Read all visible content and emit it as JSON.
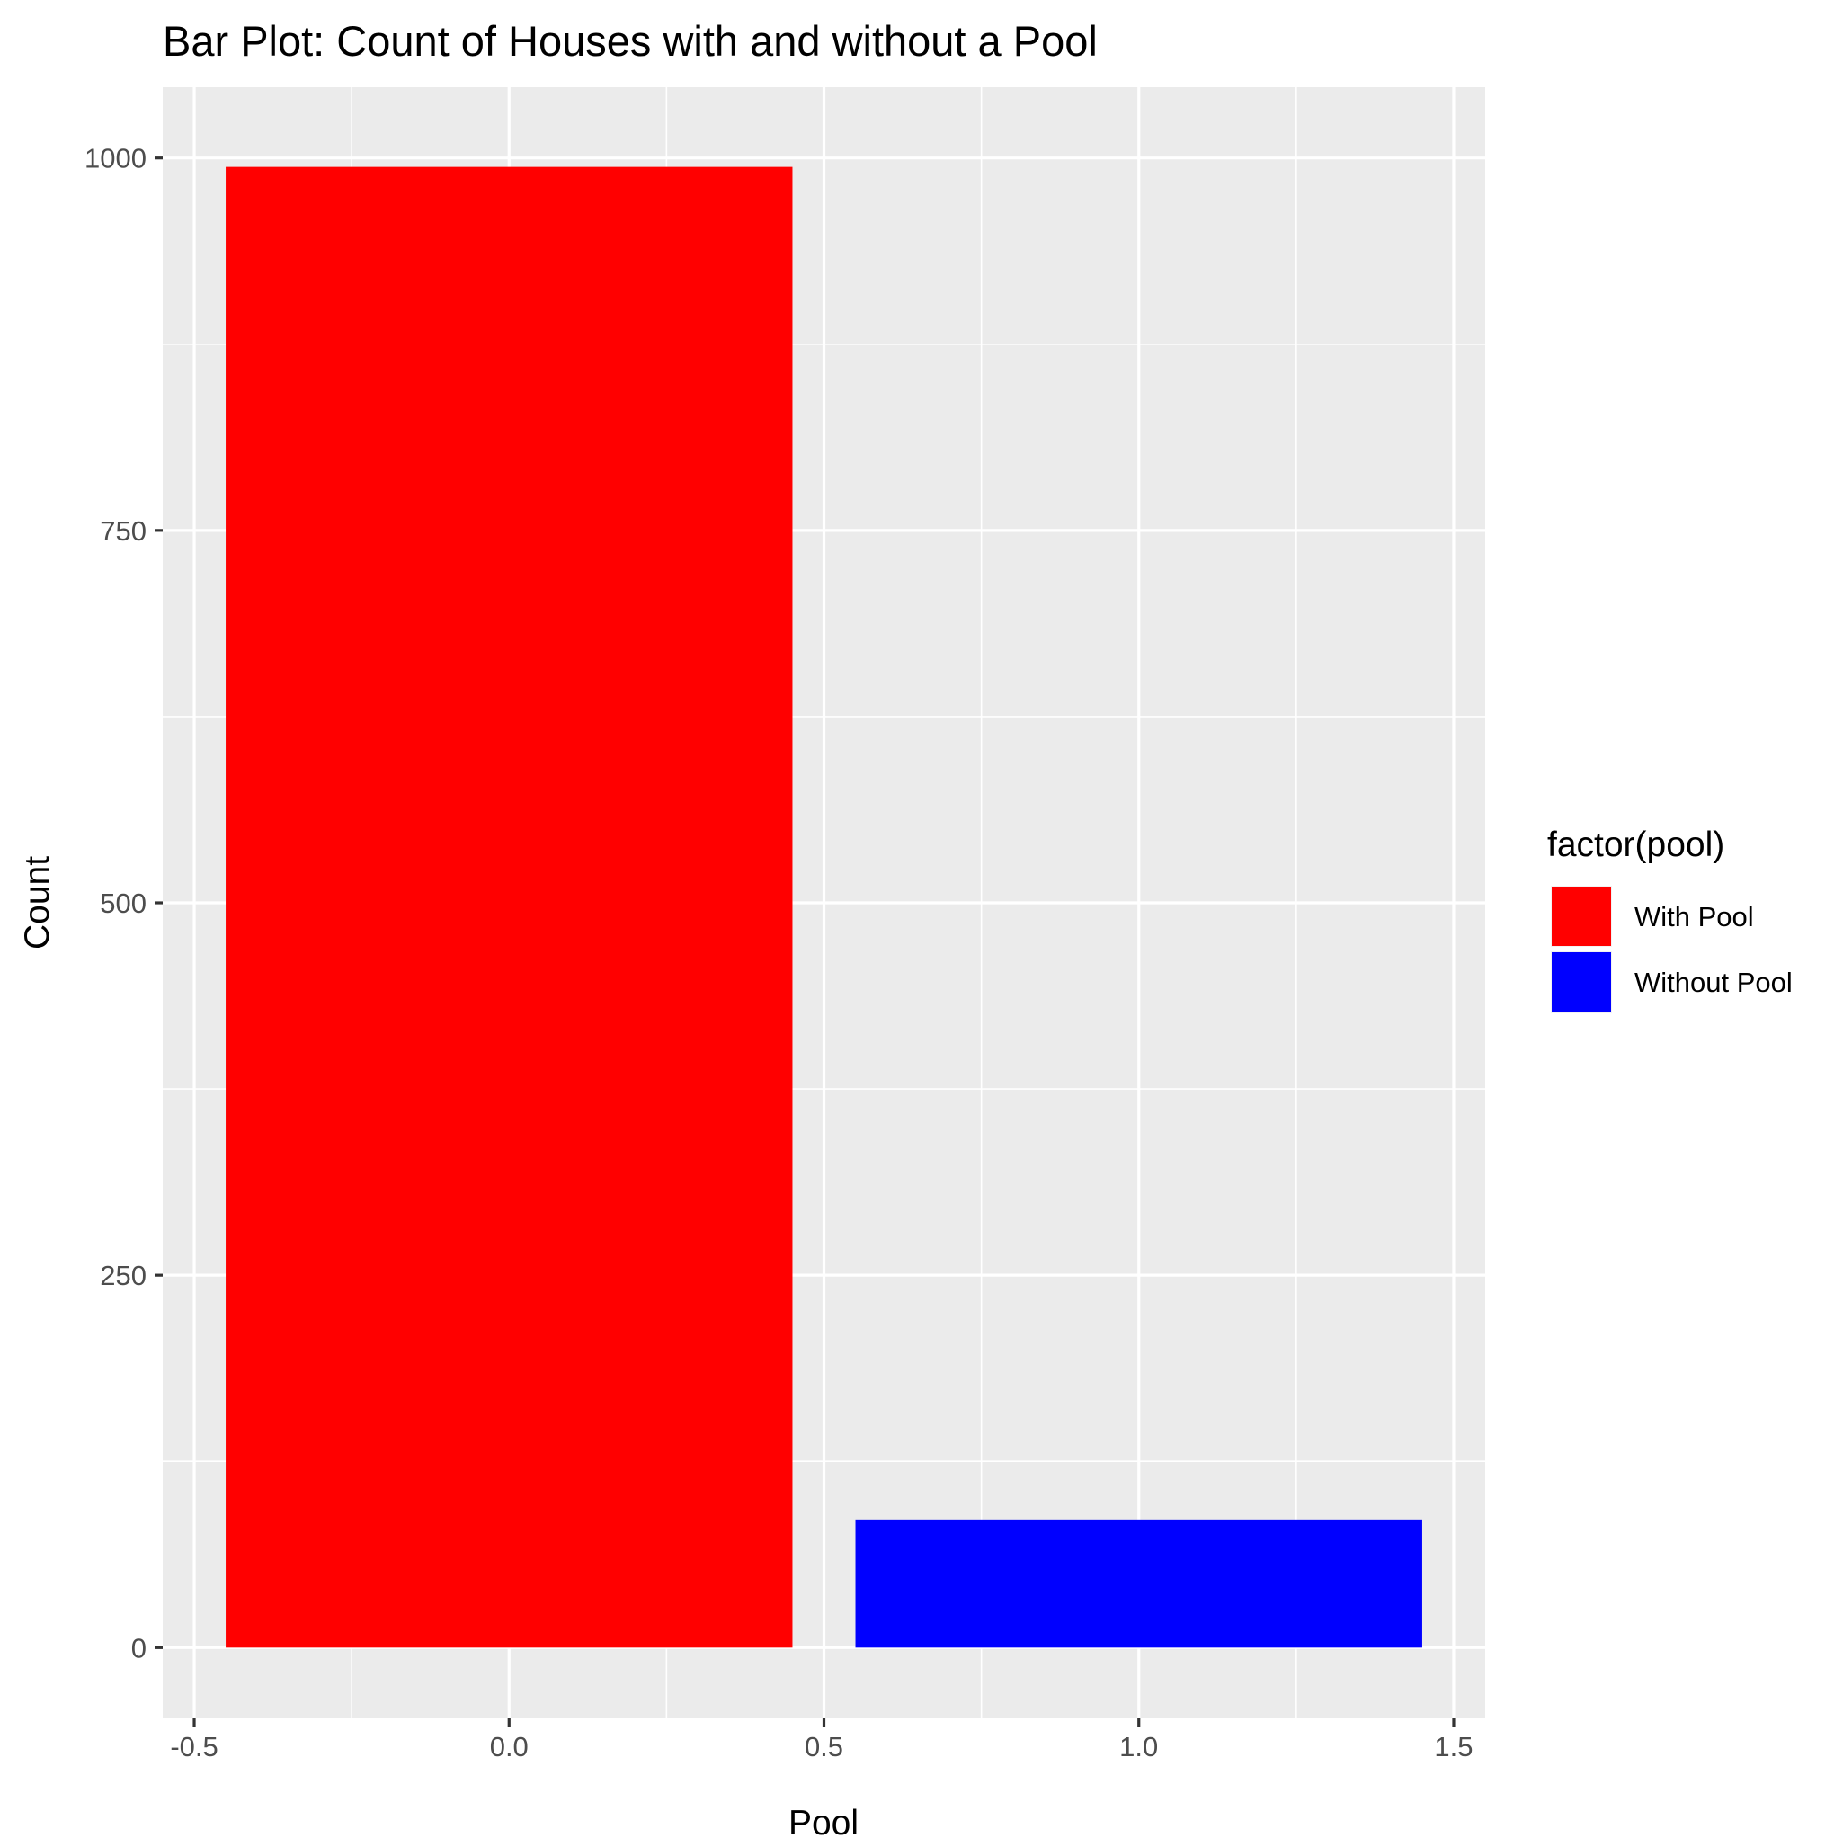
{
  "chart_data": {
    "type": "bar",
    "title": "Bar Plot: Count of Houses with and without a Pool",
    "xlabel": "Pool",
    "ylabel": "Count",
    "xlim": [
      -0.55,
      1.55
    ],
    "ylim": [
      -47.5,
      1047.5
    ],
    "x_ticks": [
      -0.5,
      0.0,
      0.5,
      1.0,
      1.5
    ],
    "x_tick_labels": [
      "-0.5",
      "0.0",
      "0.5",
      "1.0",
      "1.5"
    ],
    "y_ticks": [
      0,
      250,
      500,
      750,
      1000
    ],
    "y_tick_labels": [
      "0",
      "250",
      "500",
      "750",
      "1000"
    ],
    "bar_width": 0.9,
    "grid": true,
    "legend": {
      "title": "factor(pool)",
      "position": "right",
      "entries": [
        {
          "label": "With Pool",
          "color": "#ff0000"
        },
        {
          "label": "Without Pool",
          "color": "#0000ff"
        }
      ]
    },
    "bars": [
      {
        "x": 0,
        "value": 994,
        "category": "With Pool",
        "color": "#ff0000"
      },
      {
        "x": 1,
        "value": 86,
        "category": "Without Pool",
        "color": "#0000ff"
      }
    ]
  }
}
